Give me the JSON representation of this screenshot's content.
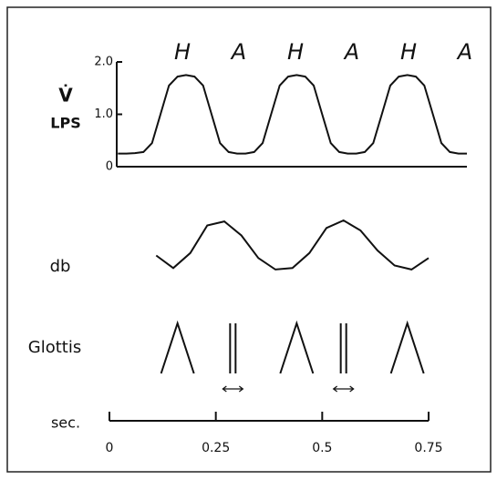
{
  "chart_data": {
    "type": "line",
    "ylabel_symbol": "V̇",
    "ylabel": "LPS",
    "annotations": [
      "H",
      "A",
      "H",
      "A",
      "H",
      "A"
    ],
    "ylim": [
      0,
      2
    ],
    "yticks": [
      0,
      {
        "value": 1,
        "label": "1.0"
      },
      {
        "value": 2,
        "label": "2.0"
      }
    ],
    "xlabel": "sec.",
    "xlim": [
      0,
      0.75
    ],
    "xticks": [
      0,
      0.25,
      0.5,
      0.75
    ],
    "y2lim": [
      0,
      1
    ],
    "color": "#111111",
    "series": [
      {
        "name": "V̇",
        "x": [
          0.02,
          0.04,
          0.06,
          0.08,
          0.1,
          0.12,
          0.14,
          0.16,
          0.18,
          0.2,
          0.22,
          0.24,
          0.26,
          0.28,
          0.3,
          0.32,
          0.34,
          0.36,
          0.38,
          0.4,
          0.42,
          0.44,
          0.46,
          0.48,
          0.5,
          0.52,
          0.54,
          0.56,
          0.58,
          0.6,
          0.62,
          0.64,
          0.66,
          0.68,
          0.7,
          0.72,
          0.74,
          0.76,
          0.78,
          0.8,
          0.82,
          0.84
        ],
        "values": [
          0.25,
          0.25,
          0.26,
          0.28,
          0.45,
          1.0,
          1.55,
          1.72,
          1.75,
          1.72,
          1.55,
          1.0,
          0.45,
          0.28,
          0.25,
          0.25,
          0.28,
          0.45,
          1.0,
          1.55,
          1.72,
          1.75,
          1.72,
          1.55,
          1.0,
          0.45,
          0.28,
          0.25,
          0.25,
          0.28,
          0.45,
          1.0,
          1.55,
          1.72,
          1.75,
          1.72,
          1.55,
          1.0,
          0.45,
          0.28,
          0.25,
          0.25
        ]
      },
      {
        "name": "db",
        "axis": "y2",
        "x": [
          0.11,
          0.15,
          0.19,
          0.23,
          0.27,
          0.31,
          0.35,
          0.39,
          0.43,
          0.47,
          0.51,
          0.55,
          0.59,
          0.63,
          0.67,
          0.71,
          0.75
        ],
        "values": [
          0.3,
          0.05,
          0.35,
          0.9,
          0.98,
          0.7,
          0.25,
          0.02,
          0.05,
          0.35,
          0.85,
          1.0,
          0.8,
          0.4,
          0.1,
          0.02,
          0.25
        ]
      }
    ],
    "glottis": {
      "label": "Glottis",
      "x": [
        0.16,
        0.29,
        0.44,
        0.55,
        0.7
      ]
    }
  }
}
